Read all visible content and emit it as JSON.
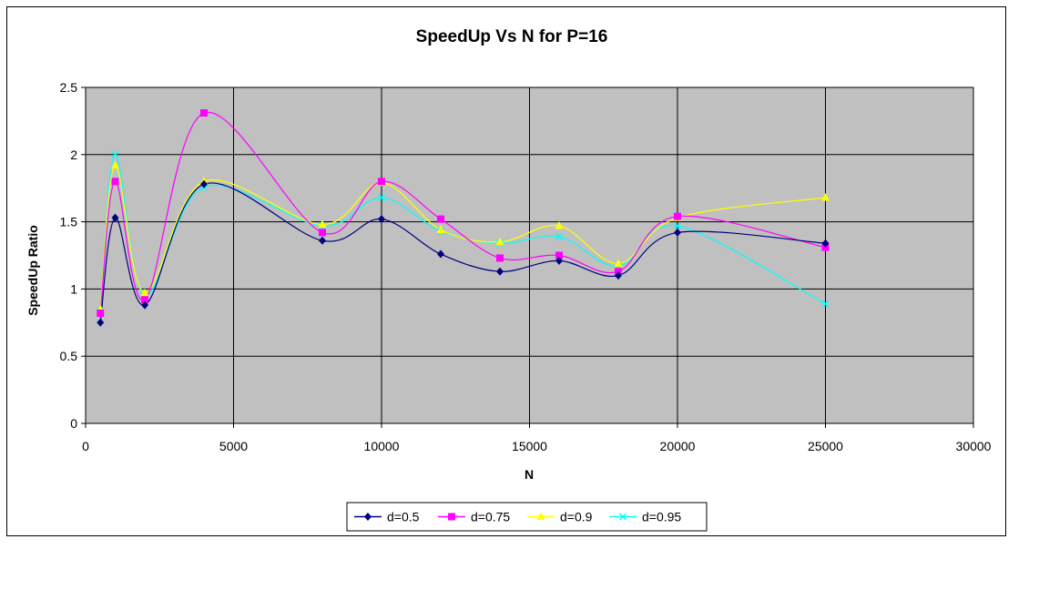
{
  "chart_data": {
    "type": "line",
    "title": "SpeedUp Vs N for P=16",
    "xlabel": "N",
    "ylabel": "SpeedUp Ratio",
    "xlim": [
      0,
      30000
    ],
    "ylim": [
      0,
      2.5
    ],
    "x_ticks": [
      "0",
      "5000",
      "10000",
      "15000",
      "20000",
      "25000",
      "30000"
    ],
    "y_ticks": [
      "0",
      "0.5",
      "1",
      "1.5",
      "2",
      "2.5"
    ],
    "grid": true,
    "plot_background": "#c0c0c0",
    "legend_position": "bottom",
    "x": [
      500,
      1000,
      2000,
      4000,
      8000,
      10000,
      12000,
      14000,
      16000,
      18000,
      20000,
      25000
    ],
    "series": [
      {
        "name": "d=0.5",
        "color": "#000080",
        "marker": "diamond",
        "values": [
          0.75,
          1.53,
          0.88,
          1.78,
          1.36,
          1.52,
          1.26,
          1.13,
          1.21,
          1.1,
          1.42,
          1.34
        ]
      },
      {
        "name": "d=0.75",
        "color": "#ff00ff",
        "marker": "square",
        "values": [
          0.82,
          1.8,
          0.92,
          2.31,
          1.42,
          1.8,
          1.52,
          1.23,
          1.25,
          1.13,
          1.54,
          1.31
        ]
      },
      {
        "name": "d=0.9",
        "color": "#ffff00",
        "marker": "triangle",
        "values": [
          0.85,
          1.92,
          0.97,
          1.8,
          1.48,
          1.79,
          1.44,
          1.35,
          1.47,
          1.19,
          1.53,
          1.68
        ]
      },
      {
        "name": "d=0.95",
        "color": "#00ffff",
        "marker": "x",
        "values": [
          0.84,
          2.0,
          0.95,
          1.76,
          1.47,
          1.68,
          1.43,
          1.34,
          1.39,
          1.17,
          1.47,
          0.89
        ]
      }
    ]
  }
}
